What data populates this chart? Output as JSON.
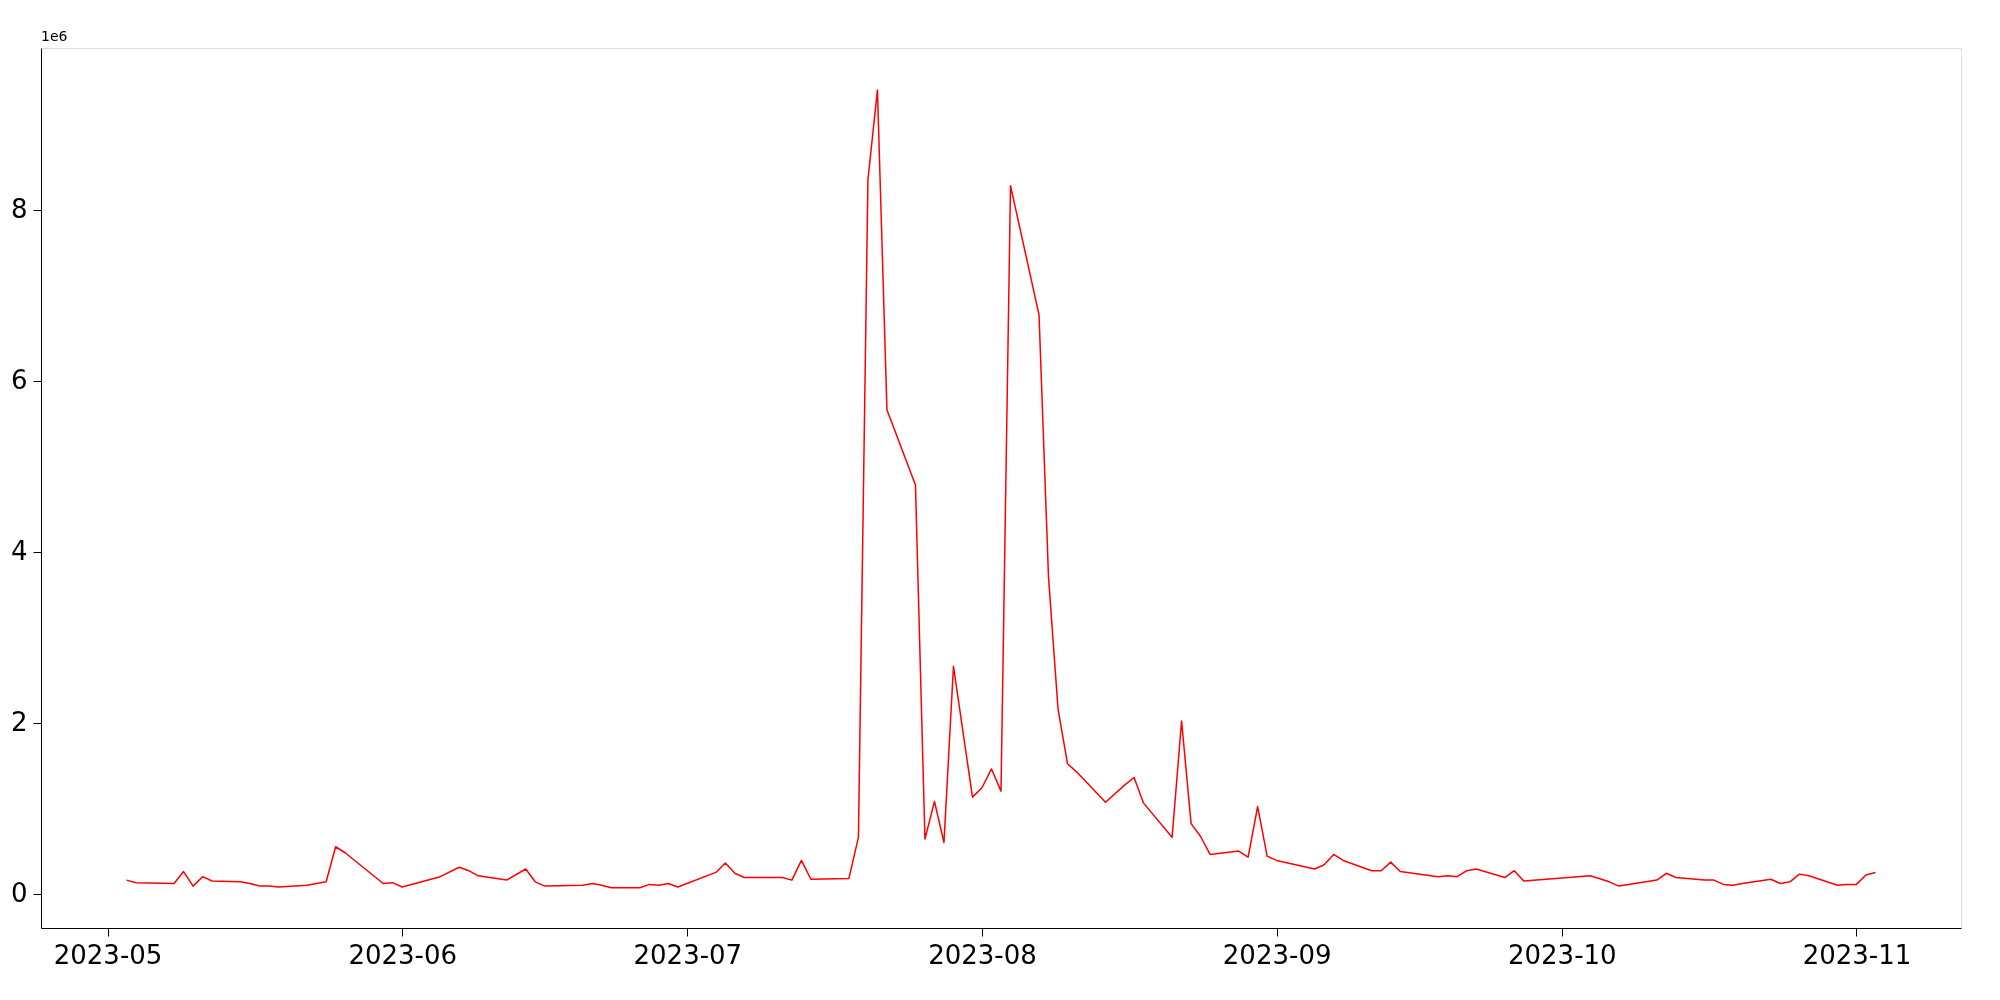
{
  "chart_data": {
    "type": "line",
    "x": [
      "2023-05-03",
      "2023-05-04",
      "2023-05-08",
      "2023-05-09",
      "2023-05-10",
      "2023-05-11",
      "2023-05-12",
      "2023-05-15",
      "2023-05-16",
      "2023-05-17",
      "2023-05-18",
      "2023-05-19",
      "2023-05-22",
      "2023-05-23",
      "2023-05-24",
      "2023-05-25",
      "2023-05-26",
      "2023-05-30",
      "2023-05-31",
      "2023-06-01",
      "2023-06-05",
      "2023-06-07",
      "2023-06-08",
      "2023-06-09",
      "2023-06-12",
      "2023-06-14",
      "2023-06-15",
      "2023-06-16",
      "2023-06-20",
      "2023-06-21",
      "2023-06-22",
      "2023-06-23",
      "2023-06-26",
      "2023-06-27",
      "2023-06-28",
      "2023-06-29",
      "2023-06-30",
      "2023-07-04",
      "2023-07-05",
      "2023-07-06",
      "2023-07-07",
      "2023-07-11",
      "2023-07-12",
      "2023-07-13",
      "2023-07-14",
      "2023-07-18",
      "2023-07-19",
      "2023-07-20",
      "2023-07-21",
      "2023-07-22",
      "2023-07-25",
      "2023-07-26",
      "2023-07-27",
      "2023-07-28",
      "2023-07-29",
      "2023-07-31",
      "2023-08-01",
      "2023-08-02",
      "2023-08-03",
      "2023-08-04",
      "2023-08-07",
      "2023-08-08",
      "2023-08-09",
      "2023-08-10",
      "2023-08-11",
      "2023-08-14",
      "2023-08-16",
      "2023-08-17",
      "2023-08-18",
      "2023-08-21",
      "2023-08-22",
      "2023-08-23",
      "2023-08-24",
      "2023-08-25",
      "2023-08-28",
      "2023-08-29",
      "2023-08-30",
      "2023-08-31",
      "2023-09-01",
      "2023-09-05",
      "2023-09-06",
      "2023-09-07",
      "2023-09-08",
      "2023-09-11",
      "2023-09-12",
      "2023-09-13",
      "2023-09-14",
      "2023-09-18",
      "2023-09-19",
      "2023-09-20",
      "2023-09-21",
      "2023-09-22",
      "2023-09-25",
      "2023-09-26",
      "2023-09-27",
      "2023-10-04",
      "2023-10-06",
      "2023-10-07",
      "2023-10-11",
      "2023-10-12",
      "2023-10-13",
      "2023-10-16",
      "2023-10-17",
      "2023-10-18",
      "2023-10-19",
      "2023-10-20",
      "2023-10-23",
      "2023-10-24",
      "2023-10-25",
      "2023-10-26",
      "2023-10-27",
      "2023-10-30",
      "2023-10-31",
      "2023-11-01",
      "2023-11-02",
      "2023-11-03"
    ],
    "series": [
      {
        "color": "#ff0000",
        "values": [
          0.16,
          0.13,
          0.12,
          0.26,
          0.09,
          0.2,
          0.15,
          0.14,
          0.12,
          0.09,
          0.09,
          0.08,
          0.1,
          0.12,
          0.14,
          0.55,
          0.48,
          0.12,
          0.13,
          0.08,
          0.2,
          0.31,
          0.27,
          0.21,
          0.16,
          0.29,
          0.14,
          0.09,
          0.1,
          0.12,
          0.1,
          0.07,
          0.07,
          0.11,
          0.1,
          0.12,
          0.08,
          0.25,
          0.36,
          0.24,
          0.19,
          0.19,
          0.16,
          0.39,
          0.17,
          0.18,
          0.66,
          8.35,
          9.4,
          5.66,
          4.78,
          0.64,
          1.08,
          0.6,
          2.66,
          1.13,
          1.24,
          1.46,
          1.2,
          8.28,
          6.77,
          3.7,
          2.16,
          1.52,
          1.42,
          1.07,
          1.27,
          1.36,
          1.06,
          0.66,
          2.02,
          0.82,
          0.67,
          0.46,
          0.5,
          0.43,
          1.02,
          0.44,
          0.39,
          0.29,
          0.34,
          0.46,
          0.39,
          0.27,
          0.27,
          0.37,
          0.26,
          0.2,
          0.21,
          0.2,
          0.27,
          0.29,
          0.19,
          0.27,
          0.15,
          0.21,
          0.14,
          0.09,
          0.16,
          0.24,
          0.19,
          0.16,
          0.16,
          0.11,
          0.1,
          0.12,
          0.17,
          0.12,
          0.14,
          0.23,
          0.21,
          0.1,
          0.11,
          0.11,
          0.22,
          0.25
        ]
      }
    ],
    "xlim": [
      "2023-04-24",
      "2023-11-12"
    ],
    "xticks": [
      "2023-05",
      "2023-06",
      "2023-07",
      "2023-08",
      "2023-09",
      "2023-10",
      "2023-11"
    ],
    "ylim": [
      -0.4,
      9.89
    ],
    "yticks": [
      0,
      2,
      4,
      6,
      8
    ],
    "annotations": [
      "1e6"
    ],
    "grid": false,
    "marker": "none",
    "line_style": "solid"
  }
}
